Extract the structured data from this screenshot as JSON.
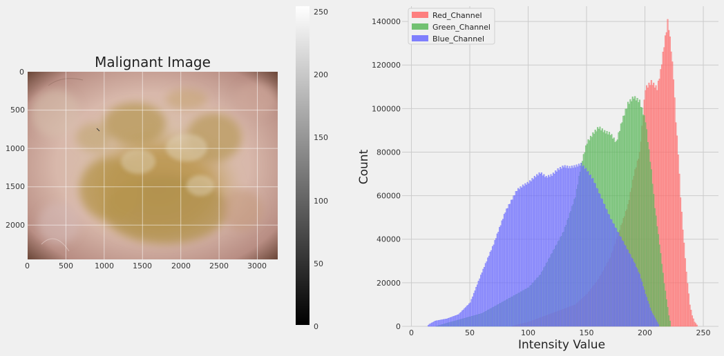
{
  "image_panel": {
    "title": "Malignant Image",
    "x_ticks": [
      "0",
      "500",
      "1000",
      "1500",
      "2000",
      "2500",
      "3000"
    ],
    "y_ticks": [
      "0",
      "500",
      "1000",
      "1500",
      "2000"
    ],
    "x_range": [
      0,
      3264
    ],
    "y_range": [
      0,
      2448
    ]
  },
  "colorbar": {
    "ticks": [
      "0",
      "50",
      "100",
      "150",
      "200",
      "250"
    ],
    "range": [
      0,
      255
    ]
  },
  "chart_data": {
    "type": "bar",
    "title": "",
    "xlabel": "Intensity Value",
    "ylabel": "Count",
    "xlim": [
      -8,
      263
    ],
    "ylim": [
      0,
      147000
    ],
    "x_ticks": [
      0,
      50,
      100,
      150,
      200,
      250
    ],
    "y_ticks": [
      0,
      20000,
      40000,
      60000,
      80000,
      100000,
      120000,
      140000
    ],
    "legend_position": "top-left",
    "grid": true,
    "series": [
      {
        "name": "Red_Channel",
        "color": "#ff6b6b",
        "x": [
          85,
          100,
          120,
          140,
          150,
          160,
          170,
          180,
          185,
          190,
          195,
          200,
          205,
          210,
          213,
          216,
          218,
          219,
          220,
          222,
          224,
          226,
          228,
          230,
          232,
          235,
          238,
          240,
          242,
          245
        ],
        "y": [
          0,
          2000,
          6000,
          10000,
          15000,
          22000,
          32000,
          48000,
          56000,
          70000,
          80000,
          110000,
          113000,
          110000,
          118000,
          130000,
          137000,
          141000,
          138000,
          128000,
          115000,
          95000,
          80000,
          60000,
          45000,
          25000,
          10000,
          5000,
          2000,
          0
        ]
      },
      {
        "name": "Green_Channel",
        "color": "#5cb85c",
        "x": [
          20,
          40,
          60,
          80,
          100,
          110,
          120,
          130,
          140,
          145,
          150,
          155,
          160,
          165,
          170,
          175,
          180,
          185,
          190,
          195,
          200,
          205,
          208,
          212,
          216,
          220,
          222
        ],
        "y": [
          0,
          3000,
          6000,
          12000,
          18000,
          24000,
          34000,
          44000,
          60000,
          75000,
          85000,
          89000,
          92000,
          90000,
          89000,
          85000,
          95000,
          103000,
          106000,
          104000,
          95000,
          72000,
          55000,
          38000,
          20000,
          5000,
          0
        ]
      },
      {
        "name": "Blue_Channel",
        "color": "#6b6bff",
        "x": [
          13,
          15,
          20,
          30,
          40,
          50,
          60,
          70,
          80,
          90,
          95,
          100,
          105,
          110,
          115,
          120,
          125,
          130,
          135,
          140,
          145,
          150,
          155,
          160,
          165,
          170,
          175,
          180,
          185,
          190,
          195,
          200,
          205,
          210,
          212
        ],
        "y": [
          0,
          1000,
          2500,
          3500,
          5500,
          11000,
          25000,
          38000,
          53000,
          63000,
          65000,
          66500,
          69000,
          71000,
          69000,
          70000,
          72500,
          74000,
          73500,
          74000,
          75000,
          72000,
          68000,
          62000,
          56000,
          50000,
          45000,
          40000,
          35000,
          30000,
          24000,
          15000,
          7000,
          2000,
          0
        ]
      }
    ]
  }
}
